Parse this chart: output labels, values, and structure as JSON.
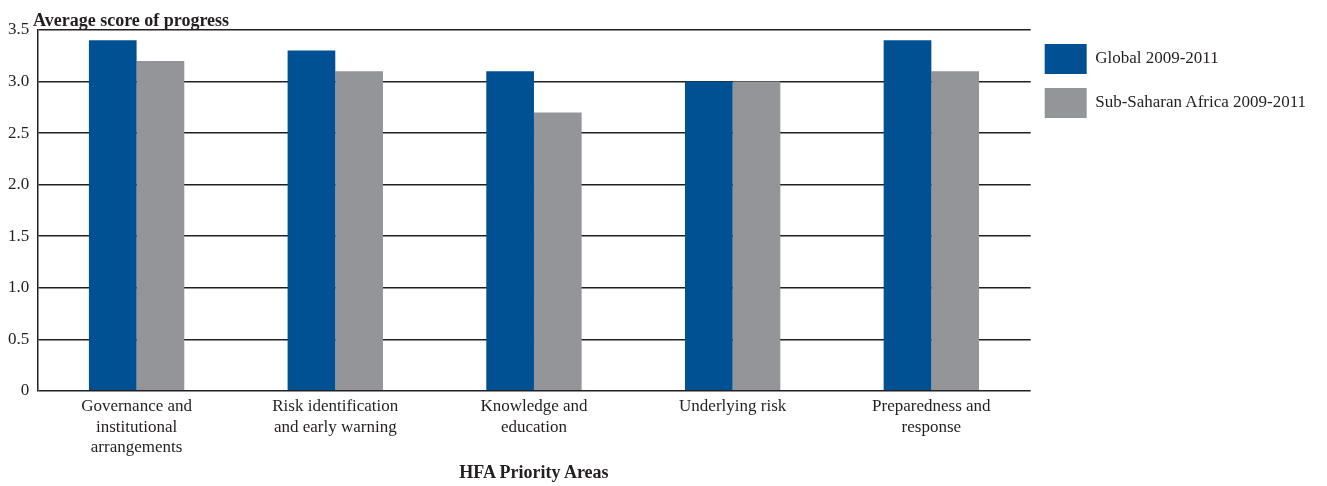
{
  "chart_data": {
    "type": "bar",
    "ylabel": "Average score of progress",
    "xlabel": "HFA Priority Areas",
    "categories": [
      "Governance and institutional arrangements",
      "Risk identification and early warning",
      "Knowledge and education",
      "Underlying risk",
      "Preparedness and response"
    ],
    "series": [
      {
        "name": "Global 2009-2011",
        "color": "#005094",
        "values": [
          3.4,
          3.3,
          3.1,
          3.0,
          3.4
        ]
      },
      {
        "name": "Sub-Saharan Africa 2009-2011",
        "color": "#939598",
        "values": [
          3.2,
          3.1,
          2.7,
          3.0,
          3.1
        ]
      }
    ],
    "ylim": [
      0,
      3.5
    ],
    "yticks": [
      0,
      {
        "value": 0.5,
        "label": "0.5"
      },
      {
        "value": 1,
        "label": "1.0"
      },
      {
        "value": 1.5,
        "label": "1.5"
      },
      {
        "value": 2,
        "label": "2.0"
      },
      {
        "value": 2.5,
        "label": "2.5"
      },
      {
        "value": 3,
        "label": "3.0"
      },
      {
        "value": 3.5,
        "label": "3.5"
      }
    ],
    "grid": "y",
    "legend": "top right"
  }
}
